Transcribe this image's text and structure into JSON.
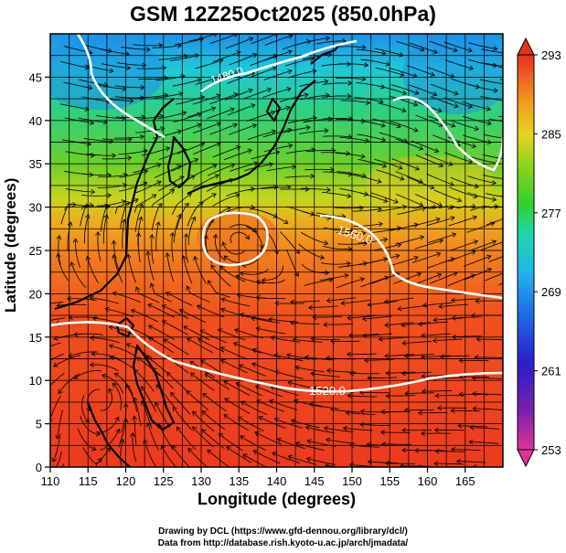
{
  "title": "GSM 12Z25Oct2025 (850.0hPa)",
  "x_axis": {
    "label": "Longitude (degrees)",
    "range": [
      110,
      170
    ],
    "ticks": [
      "110",
      "115",
      "120",
      "125",
      "130",
      "135",
      "140",
      "145",
      "150",
      "155",
      "160",
      "165"
    ]
  },
  "y_axis": {
    "label": "Latitude  (degrees)",
    "range": [
      0,
      50
    ],
    "ticks": [
      "0",
      "5",
      "10",
      "15",
      "20",
      "25",
      "30",
      "35",
      "40",
      "45"
    ]
  },
  "colorbar": {
    "min": 253,
    "max": 293,
    "labels": [
      "293",
      "285",
      "277",
      "269",
      "261",
      "253"
    ],
    "colors": [
      "#e0339a",
      "#7a1fb0",
      "#2a1fc9",
      "#1f6fe8",
      "#1fb6e8",
      "#1fd6a8",
      "#2fd02f",
      "#8ad41f",
      "#e8d41f",
      "#f29a1f",
      "#f05a1f",
      "#e8301f"
    ]
  },
  "contours": [
    {
      "label": "1560.0"
    },
    {
      "label": "1520.0"
    },
    {
      "label": "1480.0"
    }
  ],
  "credits": {
    "line1": "Drawing by DCL (https://www.gfd-dennou.org/library/dcl/)",
    "line2": "Data from http://database.rish.kyoto-u.ac.jp/arch/jmadata/"
  }
}
